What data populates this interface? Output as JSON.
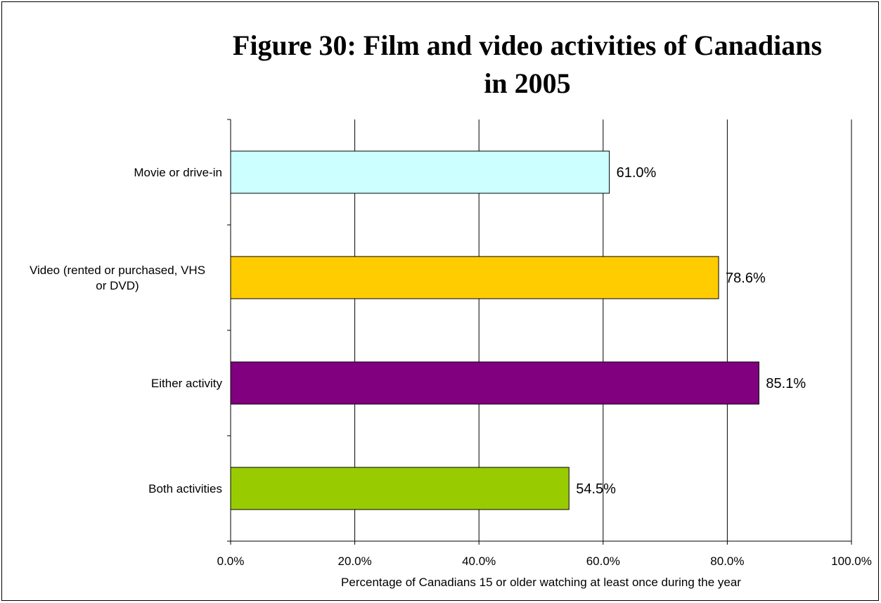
{
  "chart_data": {
    "type": "bar",
    "orientation": "horizontal",
    "title": "Figure 30: Film and video activities of Canadians in 2005",
    "title_lines": [
      "Figure 30: Film and video activities of Canadians",
      "in 2005"
    ],
    "categories": [
      "Movie or drive-in",
      "Video (rented or purchased, VHS or DVD)",
      "Either activity",
      "Both activities"
    ],
    "category_lines": [
      [
        "Movie or drive-in"
      ],
      [
        "Video (rented or purchased, VHS",
        "or DVD)"
      ],
      [
        "Either activity"
      ],
      [
        "Both activities"
      ]
    ],
    "values": [
      61.0,
      78.6,
      85.1,
      54.5
    ],
    "data_labels": [
      "61.0%",
      "78.6%",
      "85.1%",
      "54.5%"
    ],
    "colors": [
      "#ccffff",
      "#ffcc00",
      "#800080",
      "#99cc00"
    ],
    "xlabel": "Percentage of Canadians 15 or older watching at least once during the year",
    "ylabel": "",
    "xlim": [
      0,
      100
    ],
    "xticks": [
      0,
      20,
      40,
      60,
      80,
      100
    ],
    "xtick_labels": [
      "0.0%",
      "20.0%",
      "40.0%",
      "60.0%",
      "80.0%",
      "100.0%"
    ],
    "grid": "vertical gridlines",
    "legend": "none"
  }
}
